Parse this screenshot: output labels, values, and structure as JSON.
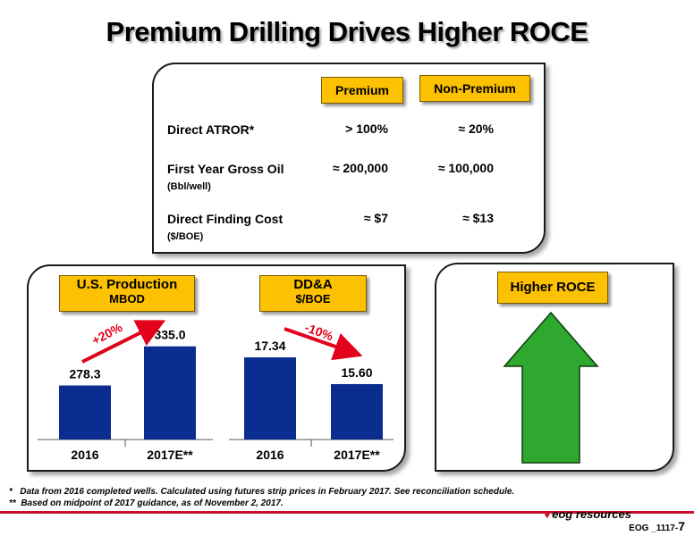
{
  "title": "Premium Drilling Drives Higher ROCE",
  "comparison": {
    "headers": [
      "Premium",
      "Non-Premium"
    ],
    "rows": [
      {
        "label": "Direct ATROR*",
        "sub": "",
        "premium": "> 100%",
        "nonpremium": "≈ 20%"
      },
      {
        "label": "First Year Gross Oil",
        "sub": "(Bbl/well)",
        "premium": "≈ 200,000",
        "nonpremium": "≈ 100,000"
      },
      {
        "label": "Direct Finding Cost",
        "sub": "($/BOE)",
        "premium": "≈ $7",
        "nonpremium": "≈ $13"
      }
    ]
  },
  "production_tag": {
    "line1": "U.S. Production",
    "line2": "MBOD"
  },
  "dda_tag": {
    "line1": "DD&A",
    "line2": "$/BOE"
  },
  "roce_tag": "Higher ROCE",
  "chart_data": [
    {
      "type": "bar",
      "title": "U.S. Production",
      "ylabel": "MBOD",
      "categories": [
        "2016",
        "2017E**"
      ],
      "values": [
        278.3,
        335.0
      ],
      "value_labels": [
        "278.3",
        "335.0"
      ],
      "annotation": "+20%",
      "color": "#0a2d8f",
      "ylim": [
        200,
        345
      ]
    },
    {
      "type": "bar",
      "title": "DD&A",
      "ylabel": "$/BOE",
      "categories": [
        "2016",
        "2017E**"
      ],
      "values": [
        17.34,
        15.6
      ],
      "value_labels": [
        "17.34",
        "15.60"
      ],
      "annotation": "-10%",
      "color": "#0a2d8f",
      "ylim": [
        12,
        18.5
      ]
    }
  ],
  "colors": {
    "bar": "#0a2d8f",
    "arrow": "#e3001b",
    "tag": "#fcc100",
    "roce_arrow": "#2ea82e",
    "brand_red": "#c8102e"
  },
  "footnotes": [
    "*   Data from 2016 completed wells. Calculated using futures strip prices in February 2017. See reconciliation schedule.",
    "**  Based on midpoint of 2017 guidance, as of November 2, 2017."
  ],
  "logo": "eog resources",
  "page_code": "EOG _1117-",
  "page_number": "7"
}
